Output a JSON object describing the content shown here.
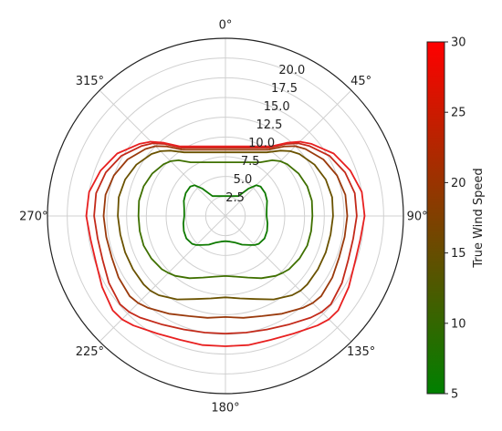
{
  "chart_data": {
    "type": "line",
    "projection": "polar",
    "theta_zero": "N",
    "theta_direction": "clockwise",
    "theta_ticks": [
      "0°",
      "45°",
      "90°",
      "135°",
      "180°",
      "225°",
      "270°",
      "315°"
    ],
    "r_ticks": [
      "2.5",
      "5.0",
      "7.5",
      "10.0",
      "12.5",
      "15.0",
      "17.5",
      "20.0"
    ],
    "r_tick_values": [
      2.5,
      5,
      7.5,
      10,
      12.5,
      15,
      17.5,
      20
    ],
    "rlim": [
      0,
      22.5
    ],
    "grid": true,
    "colorbar": {
      "label": "True Wind Speed",
      "range": [
        5,
        30
      ],
      "ticks": [
        "5",
        "10",
        "15",
        "20",
        "25",
        "30"
      ],
      "tick_values": [
        5,
        10,
        15,
        20,
        25,
        30
      ],
      "colors": [
        "#008000",
        "#ff0000"
      ]
    },
    "angles_deg": [
      33,
      40,
      45,
      50,
      60,
      70,
      80,
      90,
      100,
      110,
      120,
      130,
      135,
      140,
      150,
      160,
      170,
      180
    ],
    "series": [
      {
        "tws": 5,
        "color": "#0f7a00",
        "r": [
          3.0,
          4.5,
          5.5,
          5.8,
          5.8,
          5.6,
          5.3,
          5.2,
          5.4,
          5.6,
          5.7,
          5.5,
          5.2,
          4.8,
          4.2,
          3.6,
          3.3,
          3.2
        ]
      },
      {
        "tws": 10,
        "color": "#3f7000",
        "r": [
          8.1,
          9.2,
          9.8,
          10.2,
          10.7,
          11.0,
          11.1,
          11.0,
          11.0,
          11.0,
          10.8,
          10.5,
          10.2,
          9.9,
          9.1,
          8.3,
          7.8,
          7.6
        ]
      },
      {
        "tws": 15,
        "color": "#6a5200",
        "r": [
          9.6,
          10.8,
          11.6,
          12.2,
          13.0,
          13.5,
          13.7,
          13.6,
          13.5,
          13.5,
          13.5,
          13.5,
          13.4,
          13.1,
          12.2,
          11.2,
          10.6,
          10.3
        ]
      },
      {
        "tws": 20,
        "color": "#9a3a0c",
        "r": [
          10.0,
          11.5,
          12.5,
          13.2,
          14.3,
          15.0,
          15.4,
          15.4,
          15.3,
          15.3,
          15.6,
          15.8,
          15.6,
          15.2,
          14.3,
          13.5,
          13.1,
          12.8
        ]
      },
      {
        "tws": 25,
        "color": "#c32a1a",
        "r": [
          10.3,
          11.9,
          13.0,
          13.8,
          15.2,
          16.1,
          16.6,
          16.6,
          16.4,
          16.5,
          17.0,
          17.4,
          17.2,
          16.8,
          15.9,
          15.3,
          15.0,
          14.9
        ]
      },
      {
        "tws": 30,
        "color": "#e82020",
        "r": [
          10.5,
          12.1,
          13.3,
          14.2,
          15.8,
          16.8,
          17.5,
          17.6,
          17.3,
          17.4,
          18.0,
          18.6,
          18.5,
          18.1,
          17.2,
          16.7,
          16.6,
          16.5
        ]
      }
    ]
  }
}
